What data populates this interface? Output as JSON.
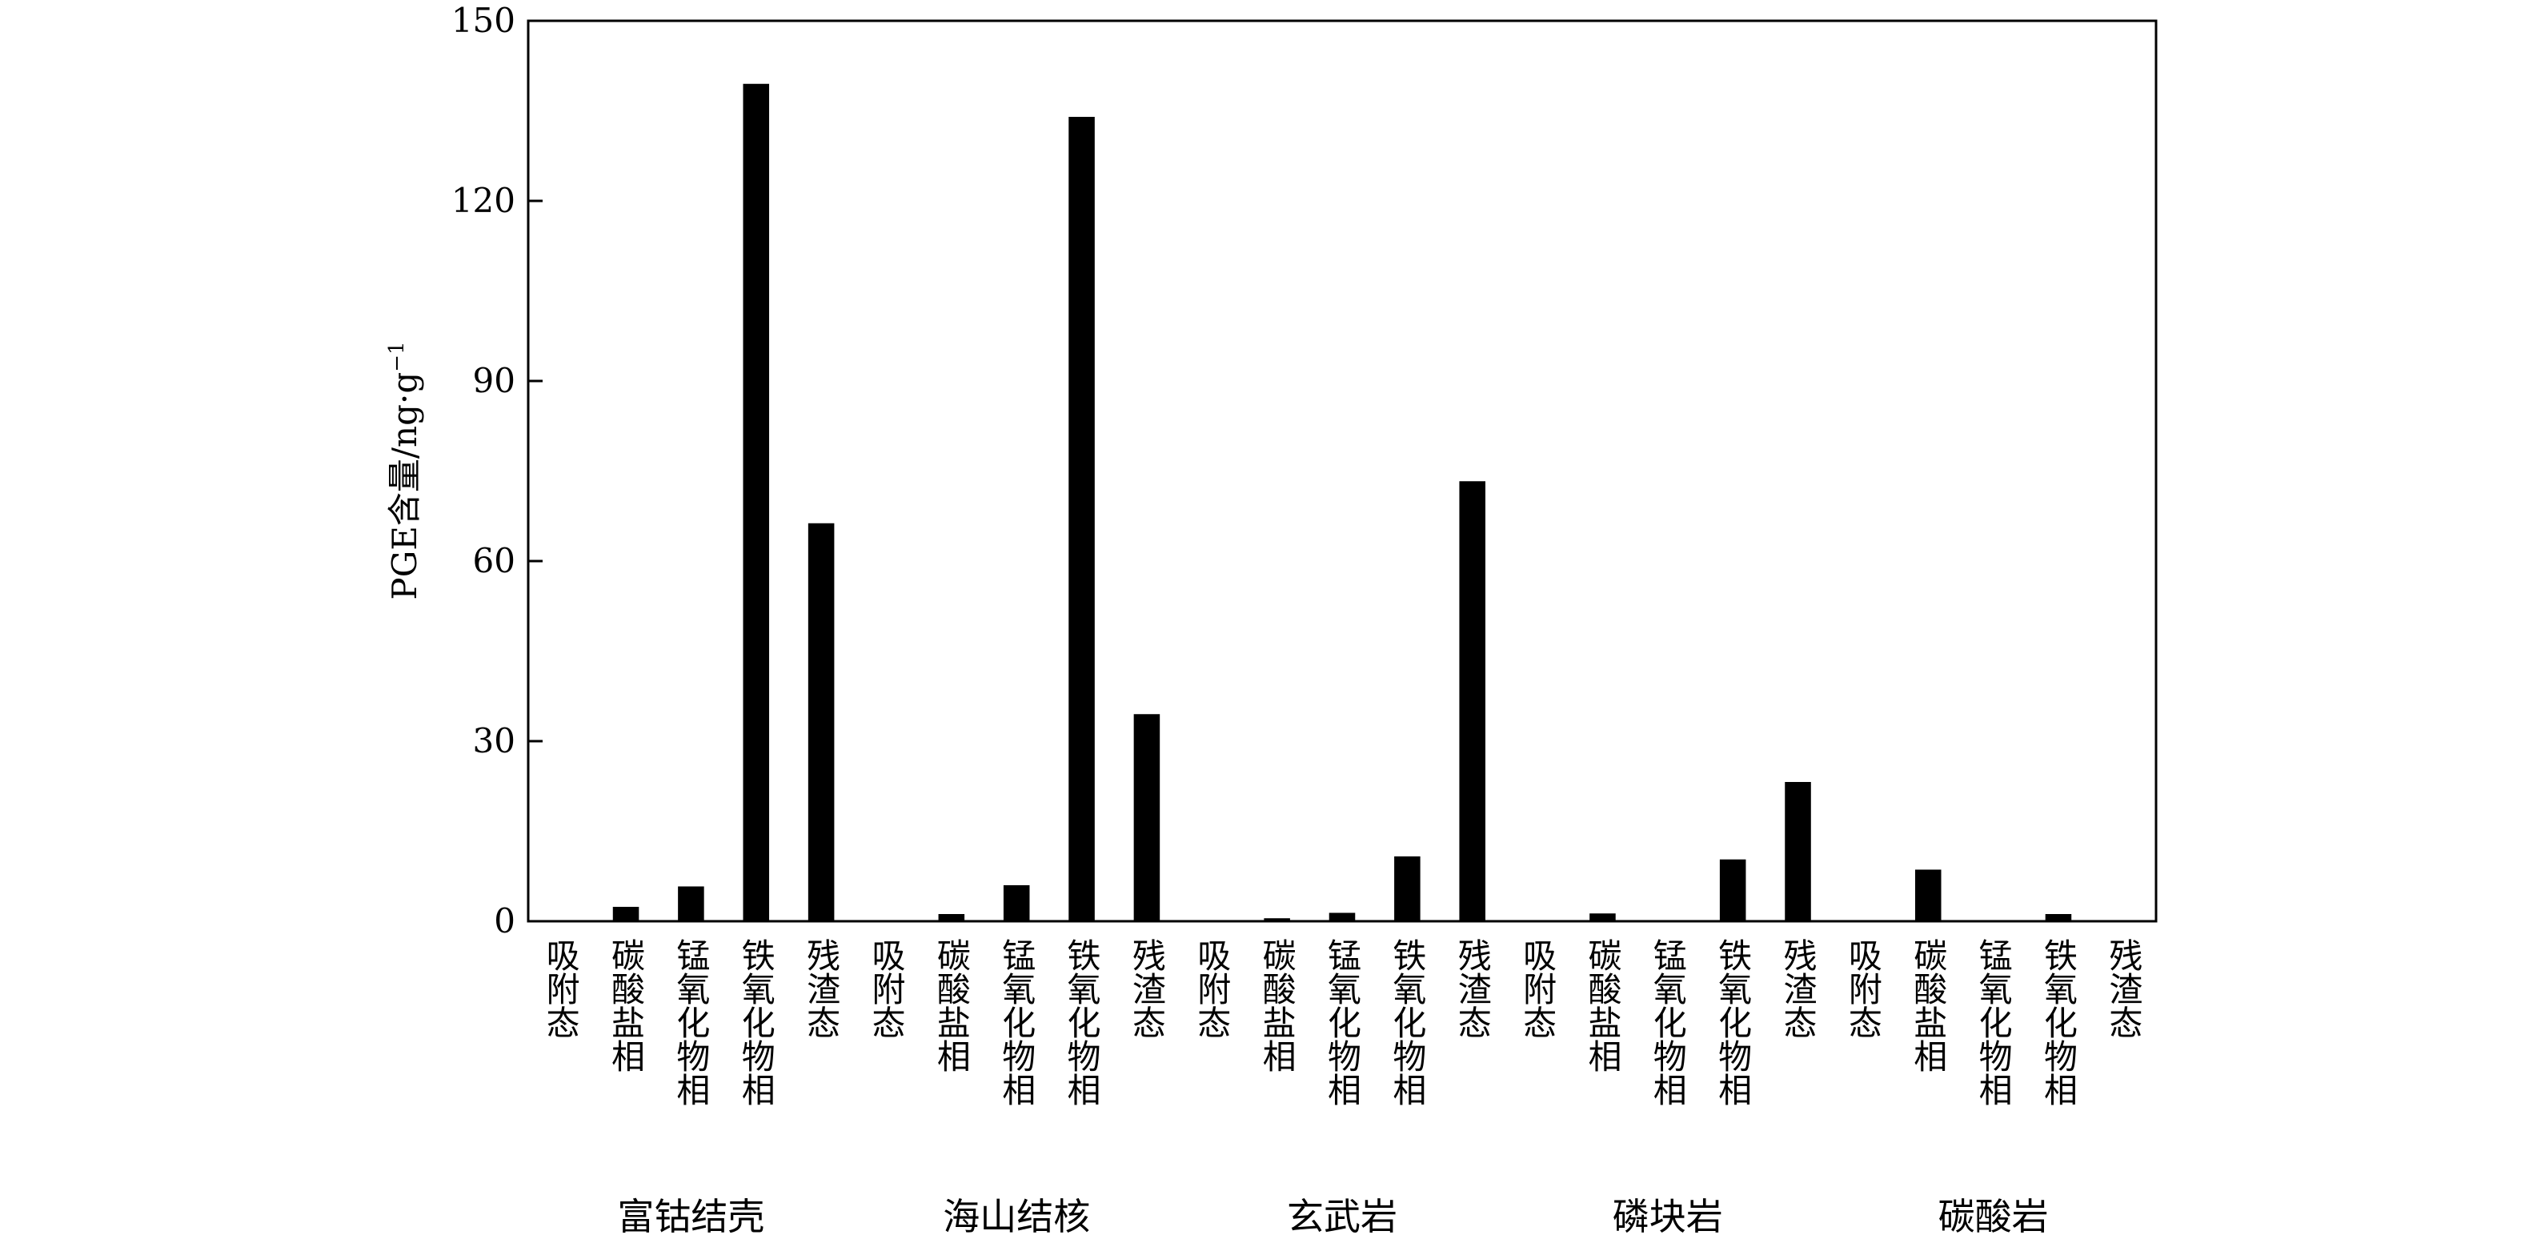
{
  "chart_data": {
    "type": "bar",
    "title": "",
    "xlabel": "",
    "ylabel": "PGE含量/ng·g",
    "ylabel_superscript": "−1",
    "ylim": [
      0,
      150
    ],
    "yticks": [
      0,
      30,
      60,
      90,
      120,
      150
    ],
    "grid": false,
    "legend": "none",
    "bar_color": "#000000",
    "groups": [
      {
        "name": "富钴结壳",
        "categories": [
          "吸附态",
          "碳酸盐相",
          "锰氧化物相",
          "铁氧化物相",
          "残渣态"
        ],
        "values": [
          0,
          2.4,
          5.8,
          139.5,
          66.3
        ]
      },
      {
        "name": "海山结核",
        "categories": [
          "吸附态",
          "碳酸盐相",
          "锰氧化物相",
          "铁氧化物相",
          "残渣态"
        ],
        "values": [
          0,
          1.2,
          6.0,
          134.0,
          34.5
        ]
      },
      {
        "name": "玄武岩",
        "categories": [
          "吸附态",
          "碳酸盐相",
          "锰氧化物相",
          "铁氧化物相",
          "残渣态"
        ],
        "values": [
          0,
          0.5,
          1.4,
          10.8,
          73.3
        ]
      },
      {
        "name": "磷块岩",
        "categories": [
          "吸附态",
          "碳酸盐相",
          "锰氧化物相",
          "铁氧化物相",
          "残渣态"
        ],
        "values": [
          0,
          1.3,
          0.2,
          10.3,
          23.2
        ]
      },
      {
        "name": "碳酸岩",
        "categories": [
          "吸附态",
          "碳酸盐相",
          "锰氧化物相",
          "铁氧化物相",
          "残渣态"
        ],
        "values": [
          0,
          8.6,
          0,
          1.2,
          0
        ]
      }
    ]
  }
}
